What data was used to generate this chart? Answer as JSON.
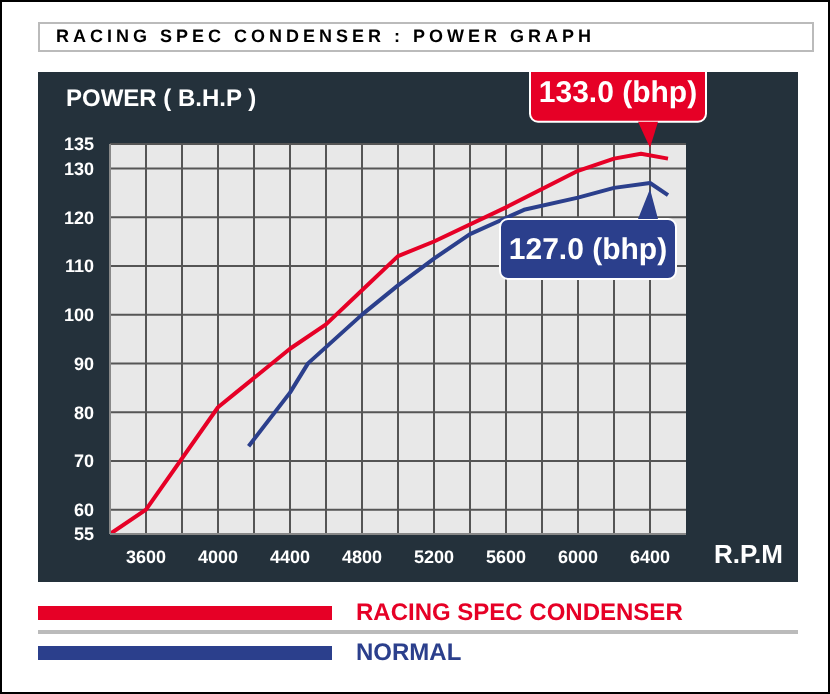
{
  "chart_data": {
    "type": "line",
    "title": "RACING SPEC CONDENSER : POWER GRAPH",
    "xlabel": "R.P.M",
    "ylabel": "POWER ( B.H.P )",
    "series": [
      {
        "name": "RACING SPEC CONDENSER",
        "color": "#e60026",
        "x": [
          3400,
          3600,
          4000,
          4100,
          4400,
          4600,
          4800,
          5000,
          5200,
          5600,
          6000,
          6200,
          6350,
          6500
        ],
        "values": [
          55,
          60,
          81,
          84,
          93,
          98,
          105,
          112,
          115,
          122,
          129.5,
          132,
          133,
          132
        ]
      },
      {
        "name": "NORMAL",
        "color": "#2b3f8c",
        "x": [
          4170,
          4400,
          4500,
          4800,
          5000,
          5200,
          5400,
          5700,
          6000,
          6200,
          6400,
          6500
        ],
        "values": [
          73,
          84,
          90,
          100,
          106,
          111.5,
          116.5,
          121.5,
          124,
          126,
          127,
          124.5
        ]
      }
    ],
    "annotations": [
      {
        "text": "133.0 (bhp)",
        "x": 6400,
        "y": 133
      },
      {
        "text": "127.0 (bhp)",
        "x": 6400,
        "y": 127
      }
    ],
    "xlim": [
      3400,
      6600
    ],
    "xticks": [
      3600,
      {
        "value": 3800,
        "label": null
      },
      4000,
      {
        "value": 4200,
        "label": null
      },
      4400,
      {
        "value": 4600,
        "label": null
      },
      4800,
      {
        "value": 5000,
        "label": null
      },
      5200,
      {
        "value": 5400,
        "label": null
      },
      5600,
      {
        "value": 5800,
        "label": null
      },
      6000,
      {
        "value": 6200,
        "label": null
      },
      6400
    ],
    "ylim": [
      55,
      135
    ],
    "yticks": [
      55,
      60,
      70,
      80,
      90,
      100,
      110,
      120,
      130,
      135
    ],
    "grid": true,
    "legend": "bottom",
    "marker": "none",
    "line_style": "solid"
  }
}
